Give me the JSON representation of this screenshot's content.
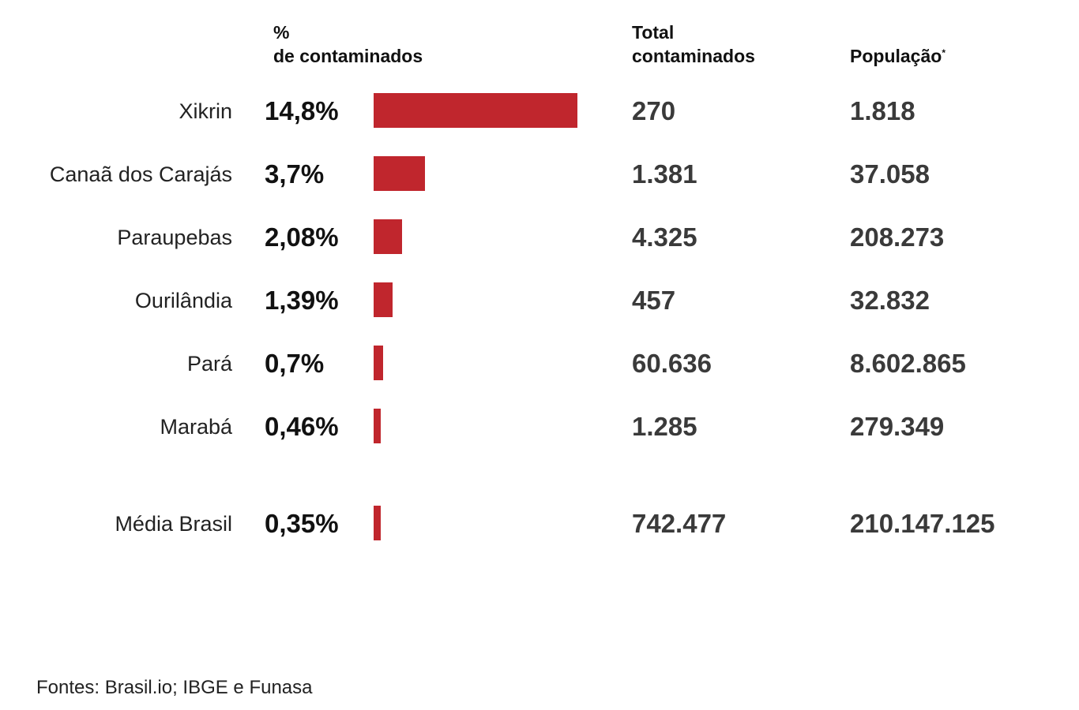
{
  "headers": {
    "pct_line1": "%",
    "pct_line2": "de contaminados",
    "total_line1": "Total",
    "total_line2": "contaminados",
    "pop_label": "População",
    "pop_mark": "*"
  },
  "chart_data": {
    "type": "bar",
    "orientation": "horizontal",
    "title": "% de contaminados",
    "categories": [
      "Xikrin",
      "Canaã dos Carajás",
      "Paraupebas",
      "Ourilândia",
      "Pará",
      "Marabá",
      "Média Brasil"
    ],
    "values": [
      14.8,
      3.7,
      2.08,
      1.39,
      0.7,
      0.46,
      0.35
    ],
    "value_labels": [
      "14,8%",
      "3,7%",
      "2,08%",
      "1,39%",
      "0,7%",
      "0,46%",
      "0,35%"
    ],
    "xlim": [
      0,
      14.8
    ],
    "bar_color": "#c0262d",
    "columns": {
      "total_contaminados": [
        "270",
        "1.381",
        "4.325",
        "457",
        "60.636",
        "1.285",
        "742.477"
      ],
      "populacao": [
        "1.818",
        "37.058",
        "208.273",
        "32.832",
        "8.602.865",
        "279.349",
        "210.147.125"
      ]
    }
  },
  "source": "Fontes: Brasil.io; IBGE e Funasa"
}
